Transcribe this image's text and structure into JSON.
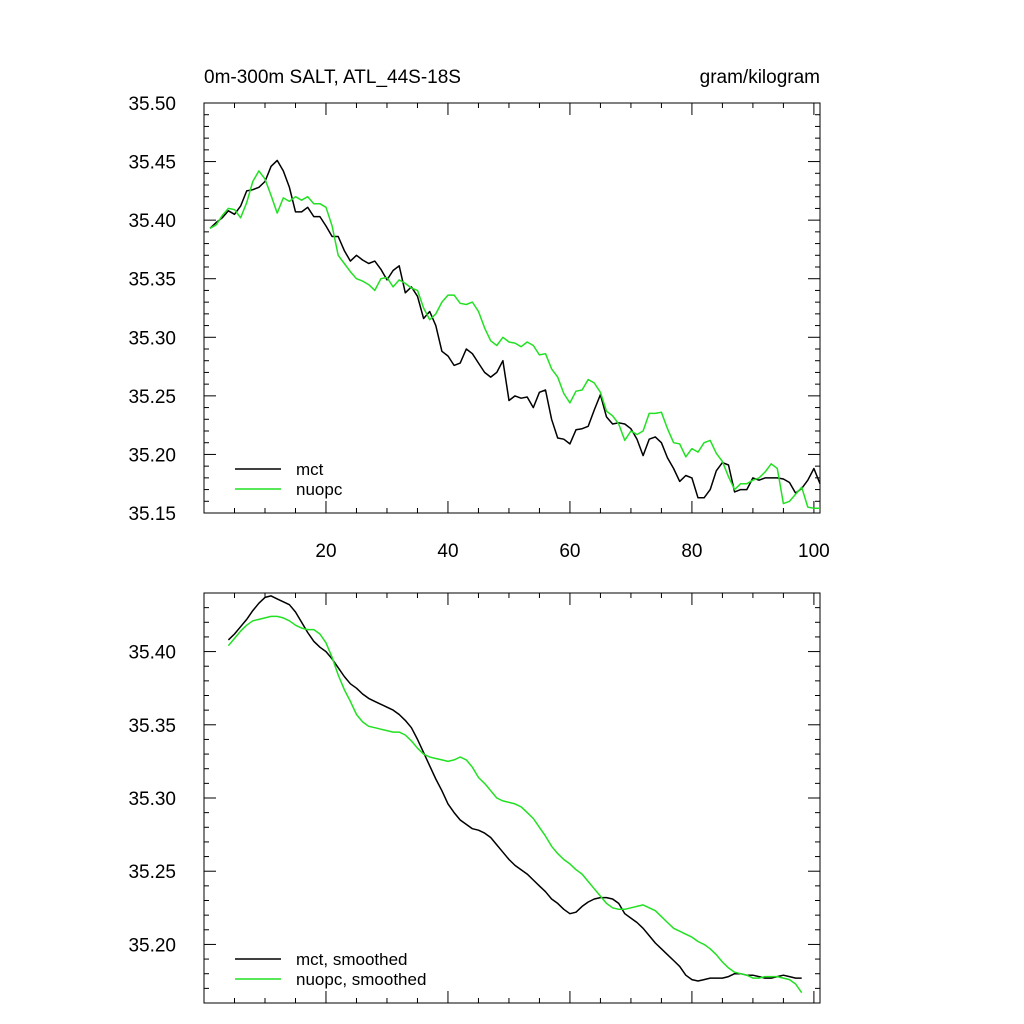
{
  "figure": {
    "title_left": "0m-300m SALT, ATL_44S-18S",
    "title_right": "gram/kilogram"
  },
  "colors": {
    "mct": "#000000",
    "nuopc": "#22e022"
  },
  "chart_data": [
    {
      "type": "line",
      "title": "0m-300m SALT, ATL_44S-18S",
      "units": "gram/kilogram",
      "xlim": [
        0,
        101
      ],
      "ylim": [
        35.15,
        35.5
      ],
      "xticks": [
        20,
        40,
        60,
        80,
        100
      ],
      "xtick_labels": [
        "20",
        "40",
        "60",
        "80",
        "100"
      ],
      "yticks": [
        35.15,
        35.2,
        35.25,
        35.3,
        35.35,
        35.4,
        35.45,
        35.5
      ],
      "ytick_labels": [
        "35.15",
        "35.20",
        "35.25",
        "35.30",
        "35.35",
        "35.40",
        "35.45",
        "35.50"
      ],
      "legend": [
        "mct",
        "nuopc"
      ],
      "legend_position": "bottom-left",
      "series": [
        {
          "name": "mct",
          "x": [
            1,
            2,
            3,
            4,
            5,
            6,
            7,
            8,
            9,
            10,
            11,
            12,
            13,
            14,
            15,
            16,
            17,
            18,
            19,
            20,
            21,
            22,
            23,
            24,
            25,
            26,
            27,
            28,
            29,
            30,
            31,
            32,
            33,
            34,
            35,
            36,
            37,
            38,
            39,
            40,
            41,
            42,
            43,
            44,
            45,
            46,
            47,
            48,
            49,
            50,
            51,
            52,
            53,
            54,
            55,
            56,
            57,
            58,
            59,
            60,
            61,
            62,
            63,
            64,
            65,
            66,
            67,
            68,
            69,
            70,
            71,
            72,
            73,
            74,
            75,
            76,
            77,
            78,
            79,
            80,
            81,
            82,
            83,
            84,
            85,
            86,
            87,
            88,
            89,
            90,
            91,
            92,
            93,
            94,
            95,
            96,
            97,
            98,
            99,
            100,
            101
          ],
          "values": [
            35.393,
            35.398,
            35.402,
            35.408,
            35.405,
            35.412,
            35.425,
            35.426,
            35.428,
            35.433,
            35.446,
            35.451,
            35.442,
            35.428,
            35.407,
            35.407,
            35.411,
            35.403,
            35.403,
            35.395,
            35.386,
            35.386,
            35.374,
            35.365,
            35.37,
            35.366,
            35.363,
            35.365,
            35.358,
            35.349,
            35.357,
            35.361,
            35.338,
            35.343,
            35.335,
            35.316,
            35.322,
            35.31,
            35.288,
            35.284,
            35.276,
            35.278,
            35.29,
            35.286,
            35.278,
            35.27,
            35.266,
            35.27,
            35.28,
            35.246,
            35.25,
            35.248,
            35.249,
            35.24,
            35.253,
            35.255,
            35.23,
            35.214,
            35.213,
            35.209,
            35.221,
            35.222,
            35.224,
            35.238,
            35.251,
            35.232,
            35.226,
            35.227,
            35.226,
            35.222,
            35.213,
            35.199,
            35.213,
            35.215,
            35.21,
            35.197,
            35.188,
            35.177,
            35.182,
            35.18,
            35.163,
            35.163,
            35.17,
            35.186,
            35.193,
            35.191,
            35.168,
            35.17,
            35.17,
            35.18,
            35.178,
            35.18,
            35.18,
            35.18,
            35.179,
            35.176,
            35.167,
            35.171,
            35.178,
            35.188,
            35.175
          ]
        },
        {
          "name": "nuopc",
          "x": [
            1,
            2,
            3,
            4,
            5,
            6,
            7,
            8,
            9,
            10,
            11,
            12,
            13,
            14,
            15,
            16,
            17,
            18,
            19,
            20,
            21,
            22,
            23,
            24,
            25,
            26,
            27,
            28,
            29,
            30,
            31,
            32,
            33,
            34,
            35,
            36,
            37,
            38,
            39,
            40,
            41,
            42,
            43,
            44,
            45,
            46,
            47,
            48,
            49,
            50,
            51,
            52,
            53,
            54,
            55,
            56,
            57,
            58,
            59,
            60,
            61,
            62,
            63,
            64,
            65,
            66,
            67,
            68,
            69,
            70,
            71,
            72,
            73,
            74,
            75,
            76,
            77,
            78,
            79,
            80,
            81,
            82,
            83,
            84,
            85,
            86,
            87,
            88,
            89,
            90,
            91,
            92,
            93,
            94,
            95,
            96,
            97,
            98,
            99,
            100,
            101
          ],
          "values": [
            35.393,
            35.396,
            35.404,
            35.41,
            35.409,
            35.402,
            35.415,
            35.433,
            35.442,
            35.435,
            35.421,
            35.406,
            35.419,
            35.416,
            35.42,
            35.417,
            35.42,
            35.414,
            35.414,
            35.411,
            35.395,
            35.37,
            35.363,
            35.356,
            35.35,
            35.348,
            35.345,
            35.34,
            35.35,
            35.351,
            35.343,
            35.349,
            35.346,
            35.342,
            35.34,
            35.325,
            35.315,
            35.32,
            35.33,
            35.336,
            35.336,
            35.329,
            35.328,
            35.33,
            35.322,
            35.308,
            35.297,
            35.293,
            35.3,
            35.296,
            35.295,
            35.292,
            35.296,
            35.293,
            35.285,
            35.286,
            35.273,
            35.266,
            35.252,
            35.244,
            35.254,
            35.255,
            35.264,
            35.261,
            35.253,
            35.237,
            35.233,
            35.226,
            35.212,
            35.22,
            35.217,
            35.22,
            35.235,
            35.235,
            35.236,
            35.222,
            35.21,
            35.209,
            35.198,
            35.205,
            35.202,
            35.21,
            35.212,
            35.201,
            35.194,
            35.181,
            35.17,
            35.175,
            35.175,
            35.178,
            35.18,
            35.185,
            35.192,
            35.188,
            35.158,
            35.16,
            35.166,
            35.172,
            35.155,
            35.154,
            35.154
          ]
        }
      ]
    },
    {
      "type": "line",
      "title": "",
      "xlim": [
        0,
        101
      ],
      "ylim": [
        35.16,
        35.44
      ],
      "xticks": [
        20,
        40,
        60,
        80,
        100
      ],
      "xtick_labels": [],
      "yticks": [
        35.2,
        35.25,
        35.3,
        35.35,
        35.4
      ],
      "ytick_labels": [
        "35.20",
        "35.25",
        "35.30",
        "35.35",
        "35.40"
      ],
      "legend": [
        "mct, smoothed",
        "nuopc, smoothed"
      ],
      "legend_position": "bottom-left",
      "series": [
        {
          "name": "mct, smoothed",
          "x": [
            4,
            5,
            6,
            7,
            8,
            9,
            10,
            11,
            12,
            13,
            14,
            15,
            16,
            17,
            18,
            19,
            20,
            21,
            22,
            23,
            24,
            25,
            26,
            27,
            28,
            29,
            30,
            31,
            32,
            33,
            34,
            35,
            36,
            37,
            38,
            39,
            40,
            41,
            42,
            43,
            44,
            45,
            46,
            47,
            48,
            49,
            50,
            51,
            52,
            53,
            54,
            55,
            56,
            57,
            58,
            59,
            60,
            61,
            62,
            63,
            64,
            65,
            66,
            67,
            68,
            69,
            70,
            71,
            72,
            73,
            74,
            75,
            76,
            77,
            78,
            79,
            80,
            81,
            82,
            83,
            84,
            85,
            86,
            87,
            88,
            89,
            90,
            91,
            92,
            93,
            94,
            95,
            96,
            97,
            98
          ],
          "values": [
            35.408,
            35.412,
            35.417,
            35.422,
            35.428,
            35.433,
            35.437,
            35.438,
            35.436,
            35.434,
            35.432,
            35.427,
            35.42,
            35.413,
            35.407,
            35.403,
            35.4,
            35.395,
            35.389,
            35.383,
            35.378,
            35.375,
            35.371,
            35.368,
            35.366,
            35.364,
            35.362,
            35.36,
            35.357,
            35.353,
            35.348,
            35.34,
            35.331,
            35.322,
            35.313,
            35.305,
            35.296,
            35.29,
            35.285,
            35.282,
            35.279,
            35.278,
            35.276,
            35.273,
            35.268,
            35.263,
            35.258,
            35.254,
            35.251,
            35.248,
            35.244,
            35.24,
            35.236,
            35.231,
            35.228,
            35.224,
            35.221,
            35.222,
            35.226,
            35.229,
            35.231,
            35.232,
            35.232,
            35.231,
            35.228,
            35.221,
            35.218,
            35.215,
            35.211,
            35.206,
            35.201,
            35.197,
            35.193,
            35.189,
            35.185,
            35.179,
            35.176,
            35.175,
            35.176,
            35.177,
            35.177,
            35.177,
            35.178,
            35.18,
            35.18,
            35.179,
            35.179,
            35.178,
            35.177,
            35.177,
            35.178,
            35.179,
            35.178,
            35.177,
            35.177
          ]
        },
        {
          "name": "nuopc, smoothed",
          "x": [
            4,
            5,
            6,
            7,
            8,
            9,
            10,
            11,
            12,
            13,
            14,
            15,
            16,
            17,
            18,
            19,
            20,
            21,
            22,
            23,
            24,
            25,
            26,
            27,
            28,
            29,
            30,
            31,
            32,
            33,
            34,
            35,
            36,
            37,
            38,
            39,
            40,
            41,
            42,
            43,
            44,
            45,
            46,
            47,
            48,
            49,
            50,
            51,
            52,
            53,
            54,
            55,
            56,
            57,
            58,
            59,
            60,
            61,
            62,
            63,
            64,
            65,
            66,
            67,
            68,
            69,
            70,
            71,
            72,
            73,
            74,
            75,
            76,
            77,
            78,
            79,
            80,
            81,
            82,
            83,
            84,
            85,
            86,
            87,
            88,
            89,
            90,
            91,
            92,
            93,
            94,
            95,
            96,
            97,
            98
          ],
          "values": [
            35.404,
            35.409,
            35.414,
            35.418,
            35.421,
            35.422,
            35.423,
            35.424,
            35.424,
            35.423,
            35.421,
            35.418,
            35.416,
            35.415,
            35.415,
            35.412,
            35.406,
            35.396,
            35.384,
            35.374,
            35.366,
            35.357,
            35.352,
            35.349,
            35.348,
            35.347,
            35.346,
            35.345,
            35.345,
            35.343,
            35.339,
            35.334,
            35.33,
            35.328,
            35.327,
            35.326,
            35.325,
            35.326,
            35.328,
            35.326,
            35.321,
            35.314,
            35.31,
            35.305,
            35.3,
            35.298,
            35.297,
            35.296,
            35.294,
            35.29,
            35.286,
            35.28,
            35.274,
            35.267,
            35.262,
            35.258,
            35.255,
            35.251,
            35.248,
            35.243,
            35.238,
            35.233,
            35.228,
            35.225,
            35.224,
            35.224,
            35.225,
            35.226,
            35.227,
            35.225,
            35.223,
            35.219,
            35.215,
            35.211,
            35.209,
            35.207,
            35.205,
            35.202,
            35.2,
            35.197,
            35.193,
            35.188,
            35.184,
            35.181,
            35.18,
            35.179,
            35.177,
            35.177,
            35.178,
            35.178,
            35.178,
            35.177,
            35.176,
            35.173,
            35.167
          ]
        }
      ]
    }
  ]
}
